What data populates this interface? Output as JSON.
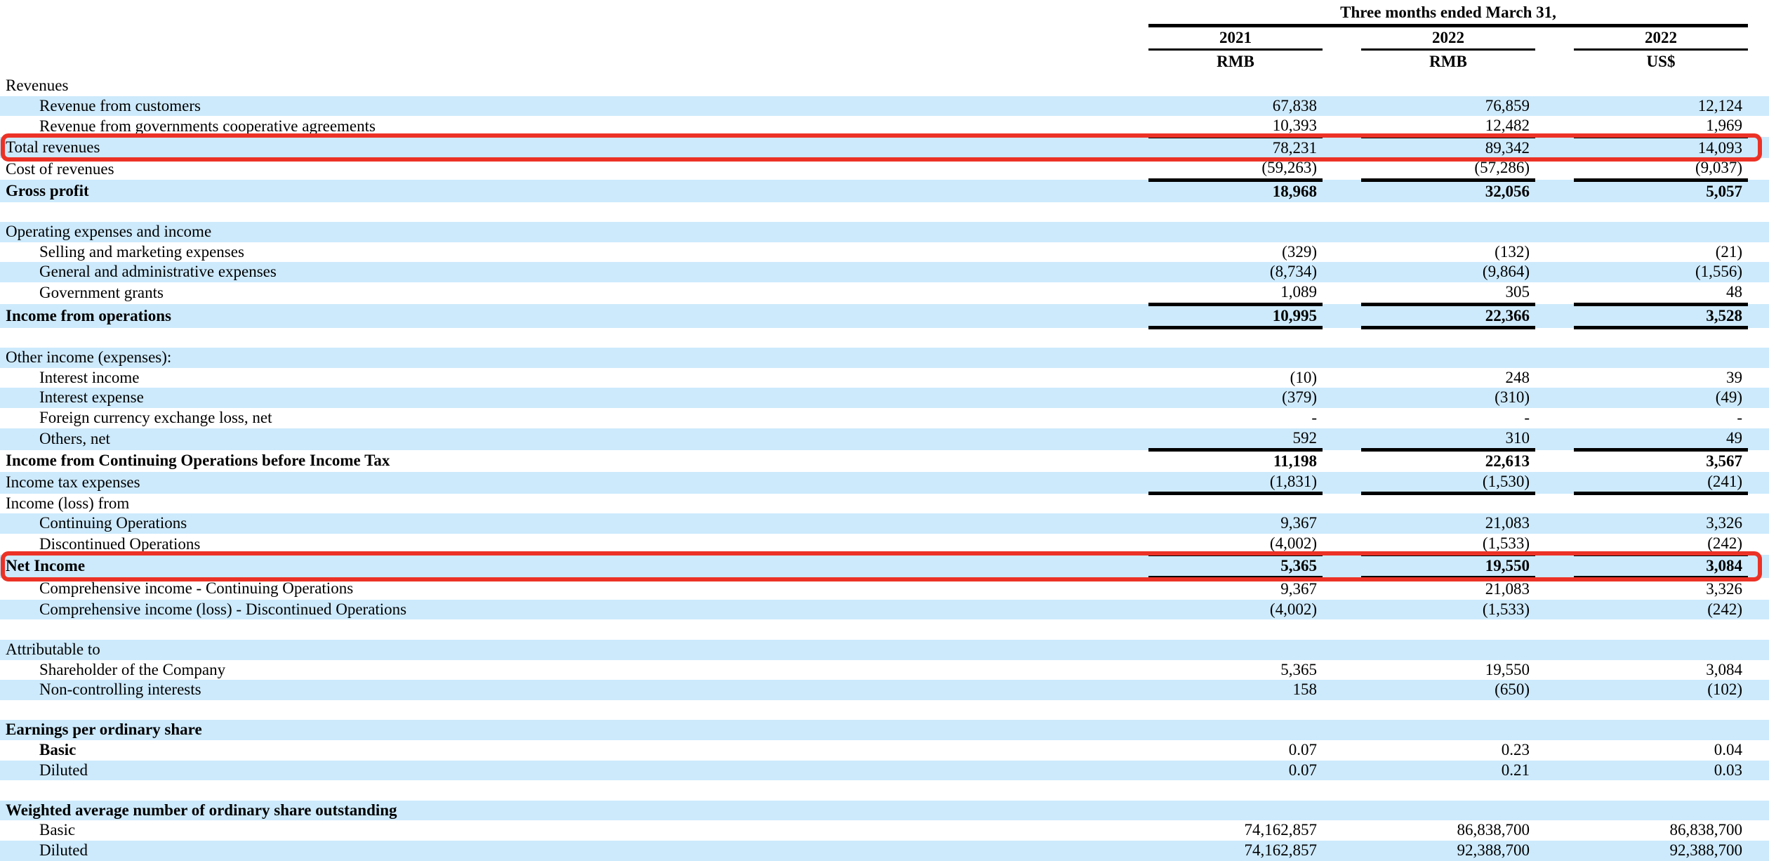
{
  "colors": {
    "row_stripe_blue": "#cdeafc",
    "callout_red": "#ec3226",
    "rule_black": "#000000"
  },
  "table": {
    "period_header": "Three months ended March 31,",
    "columns": [
      {
        "year": "2021",
        "currency": "RMB"
      },
      {
        "year": "2022",
        "currency": "RMB"
      },
      {
        "year": "2022",
        "currency": "US$"
      }
    ],
    "rows": [
      {
        "label": "Revenues",
        "indent": 0,
        "bg": "white",
        "values": [
          "",
          "",
          ""
        ]
      },
      {
        "label": "Revenue from customers",
        "indent": 1,
        "bg": "blue",
        "values": [
          "67,838",
          "76,859",
          "12,124"
        ]
      },
      {
        "label": "Revenue from governments cooperative agreements",
        "indent": 1,
        "bg": "white",
        "values": [
          "10,393",
          "12,482",
          "1,969"
        ]
      },
      {
        "label": "Total revenues",
        "indent": 0,
        "bg": "blue",
        "values": [
          "78,231",
          "89,342",
          "14,093"
        ],
        "rule_above": "thin",
        "highlight": true,
        "highlight_name": "callout-total-revenues"
      },
      {
        "label": "Cost of revenues",
        "indent": 0,
        "bg": "white",
        "values": [
          "(59,263)",
          "(57,286)",
          "(9,037)"
        ]
      },
      {
        "label": "Gross profit",
        "indent": 0,
        "bg": "blue",
        "bold_label": true,
        "bold_values": true,
        "values": [
          "18,968",
          "32,056",
          "5,057"
        ],
        "rule_above": "thick"
      },
      {
        "label": "",
        "indent": 0,
        "bg": "white",
        "values": [
          "",
          "",
          ""
        ]
      },
      {
        "label": "Operating expenses and income",
        "indent": 0,
        "bg": "blue",
        "values": [
          "",
          "",
          ""
        ]
      },
      {
        "label": "Selling and marketing expenses",
        "indent": 1,
        "bg": "white",
        "values": [
          "(329)",
          "(132)",
          "(21)"
        ]
      },
      {
        "label": "General and administrative expenses",
        "indent": 1,
        "bg": "blue",
        "values": [
          "(8,734)",
          "(9,864)",
          "(1,556)"
        ]
      },
      {
        "label": "Government grants",
        "indent": 1,
        "bg": "white",
        "values": [
          "1,089",
          "305",
          "48"
        ]
      },
      {
        "label": "Income from operations",
        "indent": 0,
        "bg": "blue",
        "bold_label": true,
        "bold_values": true,
        "values": [
          "10,995",
          "22,366",
          "3,528"
        ],
        "rule_above": "thick",
        "rule_below": "thick"
      },
      {
        "label": "",
        "indent": 0,
        "bg": "white",
        "values": [
          "",
          "",
          ""
        ]
      },
      {
        "label": "Other income (expenses):",
        "indent": 0,
        "bg": "blue",
        "values": [
          "",
          "",
          ""
        ]
      },
      {
        "label": "Interest income",
        "indent": 1,
        "bg": "white",
        "values": [
          "(10)",
          "248",
          "39"
        ]
      },
      {
        "label": "Interest expense",
        "indent": 1,
        "bg": "blue",
        "values": [
          "(379)",
          "(310)",
          "(49)"
        ]
      },
      {
        "label": "Foreign currency exchange loss, net",
        "indent": 1,
        "bg": "white",
        "values": [
          "-",
          "-",
          "-"
        ]
      },
      {
        "label": "Others, net",
        "indent": 1,
        "bg": "blue",
        "values": [
          "592",
          "310",
          "49"
        ]
      },
      {
        "label": "Income from Continuing Operations before Income Tax",
        "indent": 0,
        "bg": "white",
        "bold_label": true,
        "bold_values": true,
        "values": [
          "11,198",
          "22,613",
          "3,567"
        ],
        "rule_above": "thick"
      },
      {
        "label": "Income tax expenses",
        "indent": 0,
        "bg": "blue",
        "values": [
          "(1,831)",
          "(1,530)",
          "(241)"
        ],
        "rule_below": "thick"
      },
      {
        "label": "Income (loss) from",
        "indent": 0,
        "bg": "white",
        "values": [
          "",
          "",
          ""
        ]
      },
      {
        "label": "Continuing Operations",
        "indent": 1,
        "bg": "blue",
        "values": [
          "9,367",
          "21,083",
          "3,326"
        ]
      },
      {
        "label": "Discontinued Operations",
        "indent": 1,
        "bg": "white",
        "values": [
          "(4,002)",
          "(1,533)",
          "(242)"
        ]
      },
      {
        "label": "Net Income",
        "indent": 0,
        "bg": "blue",
        "bold_label": true,
        "bold_values": true,
        "values": [
          "5,365",
          "19,550",
          "3,084"
        ],
        "rule_above": "thin",
        "rule_below": "thick",
        "highlight": true,
        "highlight_name": "callout-net-income"
      },
      {
        "label": "Comprehensive income - Continuing Operations",
        "indent": 1,
        "bg": "white",
        "values": [
          "9,367",
          "21,083",
          "3,326"
        ]
      },
      {
        "label": "Comprehensive income (loss) - Discontinued Operations",
        "indent": 1,
        "bg": "blue",
        "values": [
          "(4,002)",
          "(1,533)",
          "(242)"
        ]
      },
      {
        "label": "",
        "indent": 0,
        "bg": "white",
        "values": [
          "",
          "",
          ""
        ]
      },
      {
        "label": "Attributable to",
        "indent": 0,
        "bg": "blue",
        "values": [
          "",
          "",
          ""
        ]
      },
      {
        "label": "Shareholder of the Company",
        "indent": 1,
        "bg": "white",
        "values": [
          "5,365",
          "19,550",
          "3,084"
        ]
      },
      {
        "label": "Non-controlling interests",
        "indent": 1,
        "bg": "blue",
        "values": [
          "158",
          "(650)",
          "(102)"
        ]
      },
      {
        "label": "",
        "indent": 0,
        "bg": "white",
        "values": [
          "",
          "",
          ""
        ]
      },
      {
        "label": "Earnings per ordinary share",
        "indent": 0,
        "bg": "blue",
        "bold_label": true,
        "values": [
          "",
          "",
          ""
        ]
      },
      {
        "label": "Basic",
        "indent": 1,
        "bg": "white",
        "bold_label": true,
        "values": [
          "0.07",
          "0.23",
          "0.04"
        ]
      },
      {
        "label": "Diluted",
        "indent": 1,
        "bg": "blue",
        "values": [
          "0.07",
          "0.21",
          "0.03"
        ]
      },
      {
        "label": "",
        "indent": 0,
        "bg": "white",
        "values": [
          "",
          "",
          ""
        ]
      },
      {
        "label": "Weighted average number of ordinary share outstanding",
        "indent": 0,
        "bg": "blue",
        "bold_label": true,
        "values": [
          "",
          "",
          ""
        ]
      },
      {
        "label": "Basic",
        "indent": 1,
        "bg": "white",
        "values": [
          "74,162,857",
          "86,838,700",
          "86,838,700"
        ]
      },
      {
        "label": "Diluted",
        "indent": 1,
        "bg": "blue",
        "values": [
          "74,162,857",
          "92,388,700",
          "92,388,700"
        ]
      }
    ]
  }
}
